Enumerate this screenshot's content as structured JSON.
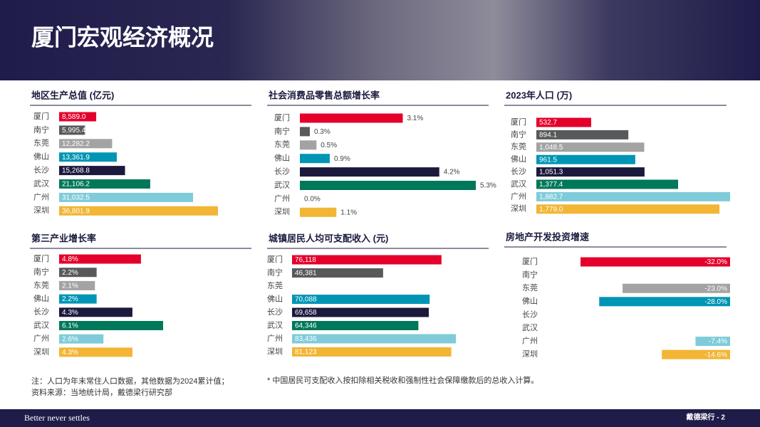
{
  "header": {
    "title": "厦门宏观经济概况"
  },
  "chart_data": [
    {
      "type": "bar",
      "orientation": "horizontal",
      "title": "地区生产总值 (亿元)",
      "categories": [
        "厦门",
        "南宁",
        "东莞",
        "佛山",
        "长沙",
        "武汉",
        "广州",
        "深圳"
      ],
      "values": [
        8589.0,
        5995.4,
        12282.2,
        13361.9,
        15268.8,
        21106.2,
        31032.5,
        36801.9
      ],
      "value_labels": [
        "8,589.0",
        "5,995.4",
        "12,282.2",
        "13,361.9",
        "15,268.8",
        "21,106.2",
        "31,032.5",
        "36,801.9"
      ],
      "colors": [
        "#e4002b",
        "#58595b",
        "#a3a3a3",
        "#0095b4",
        "#1b1a3d",
        "#00785a",
        "#7fcbd9",
        "#f2b534"
      ],
      "label_position": "inside"
    },
    {
      "type": "bar",
      "orientation": "horizontal",
      "title": "社会消费品零售总额增长率",
      "categories": [
        "厦门",
        "南宁",
        "东莞",
        "佛山",
        "长沙",
        "武汉",
        "广州",
        "深圳"
      ],
      "values": [
        3.1,
        0.3,
        0.5,
        0.9,
        4.2,
        5.3,
        0.0,
        1.1
      ],
      "value_labels": [
        "3.1%",
        "0.3%",
        "0.5%",
        "0.9%",
        "4.2%",
        "5.3%",
        "0.0%",
        "1.1%"
      ],
      "colors": [
        "#e4002b",
        "#58595b",
        "#a3a3a3",
        "#0095b4",
        "#1b1a3d",
        "#00785a",
        "#7fcbd9",
        "#f2b534"
      ],
      "label_position": "outside"
    },
    {
      "type": "bar",
      "orientation": "horizontal",
      "title": "2023年人口 (万)",
      "categories": [
        "厦门",
        "南宁",
        "东莞",
        "佛山",
        "长沙",
        "武汉",
        "广州",
        "深圳"
      ],
      "values": [
        532.7,
        894.1,
        1048.5,
        961.5,
        1051.3,
        1377.4,
        1882.7,
        1779.0
      ],
      "value_labels": [
        "532.7",
        "894.1",
        "1,048.5",
        "961.5",
        "1,051.3",
        "1,377.4",
        "1,882.7",
        "1,779.0"
      ],
      "colors": [
        "#e4002b",
        "#58595b",
        "#a3a3a3",
        "#0095b4",
        "#1b1a3d",
        "#00785a",
        "#7fcbd9",
        "#f2b534"
      ],
      "label_position": "inside"
    },
    {
      "type": "bar",
      "orientation": "horizontal",
      "title": "第三产业增长率",
      "categories": [
        "厦门",
        "南宁",
        "东莞",
        "佛山",
        "长沙",
        "武汉",
        "广州",
        "深圳"
      ],
      "values": [
        4.8,
        2.2,
        2.1,
        2.2,
        4.3,
        6.1,
        2.6,
        4.3
      ],
      "value_labels": [
        "4.8%",
        "2.2%",
        "2.1%",
        "2.2%",
        "4.3%",
        "6.1%",
        "2.6%",
        "4.3%"
      ],
      "colors": [
        "#e4002b",
        "#58595b",
        "#a3a3a3",
        "#0095b4",
        "#1b1a3d",
        "#00785a",
        "#7fcbd9",
        "#f2b534"
      ],
      "label_position": "inside"
    },
    {
      "type": "bar",
      "orientation": "horizontal",
      "title": "城镇居民人均可支配收入 (元)",
      "categories": [
        "厦门",
        "南宁",
        "东莞",
        "佛山",
        "长沙",
        "武汉",
        "广州",
        "深圳"
      ],
      "values": [
        76118,
        46381,
        null,
        70088,
        69658,
        64346,
        83436,
        81123
      ],
      "value_labels": [
        "76,118",
        "46,381",
        null,
        "70,088",
        "69,658",
        "64,346",
        "83,436",
        "81,123"
      ],
      "colors": [
        "#e4002b",
        "#58595b",
        "#a3a3a3",
        "#0095b4",
        "#1b1a3d",
        "#00785a",
        "#7fcbd9",
        "#f2b534"
      ],
      "label_position": "inside"
    },
    {
      "type": "bar",
      "orientation": "horizontal",
      "title": "房地产开发投资增速",
      "categories": [
        "厦门",
        "南宁",
        "东莞",
        "佛山",
        "长沙",
        "武汉",
        "广州",
        "深圳"
      ],
      "values": [
        -32.0,
        null,
        -23.0,
        -28.0,
        null,
        null,
        -7.4,
        -14.6
      ],
      "value_labels": [
        "-32.0%",
        null,
        "-23.0%",
        "-28.0%",
        null,
        null,
        "-7.4%",
        "-14.6%"
      ],
      "colors": [
        "#e4002b",
        "#58595b",
        "#a3a3a3",
        "#0095b4",
        "#1b1a3d",
        "#00785a",
        "#7fcbd9",
        "#f2b534"
      ],
      "label_position": "inside"
    }
  ],
  "notes": [
    "注：人口为年末常住人口数据，其他数据为2024累计值；",
    "资料来源：当地统计局，戴德梁行研究部"
  ],
  "footnote": "* 中国居民可支配收入按扣除相关税收和强制性社会保障缴款后的总收入计算。",
  "footer": {
    "tagline": "Better never settles",
    "page": "戴德梁行 - 2"
  }
}
